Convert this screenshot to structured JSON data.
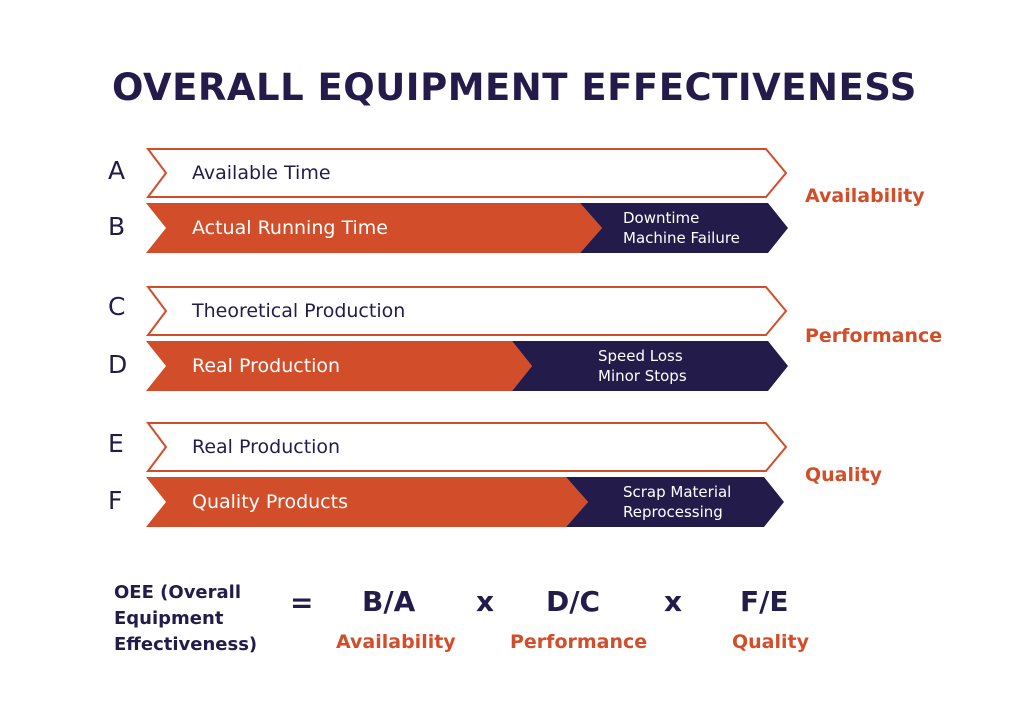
{
  "title": "OVERALL EQUIPMENT EFFECTIVENESS",
  "colors": {
    "accent": "#d24e2a",
    "navy": "#231c4a",
    "background": "#ffffff"
  },
  "rows": [
    {
      "letter": "A",
      "label": "Available Time"
    },
    {
      "letter": "B",
      "label": "Actual Running Time",
      "loss": [
        "Downtime",
        "Machine Failure"
      ]
    },
    {
      "letter": "C",
      "label": "Theoretical Production"
    },
    {
      "letter": "D",
      "label": "Real Production",
      "loss": [
        "Speed Loss",
        "Minor Stops"
      ]
    },
    {
      "letter": "E",
      "label": "Real Production"
    },
    {
      "letter": "F",
      "label": "Quality Products",
      "loss": [
        "Scrap Material",
        "Reprocessing"
      ]
    }
  ],
  "metrics": [
    "Availability",
    "Performance",
    "Quality"
  ],
  "formula": {
    "label": [
      "OEE (Overall",
      "Equipment",
      "Effectiveness)"
    ],
    "equals": "=",
    "times": "x",
    "terms": [
      {
        "ratio": "B/A",
        "name": "Availability"
      },
      {
        "ratio": "D/C",
        "name": "Performance"
      },
      {
        "ratio": "F/E",
        "name": "Quality"
      }
    ]
  }
}
